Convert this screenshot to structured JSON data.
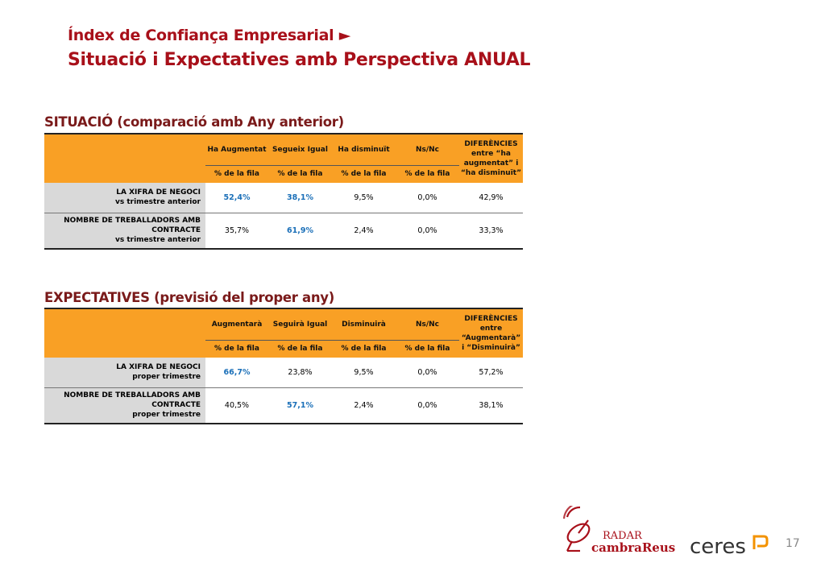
{
  "header": {
    "title": "Índex de Confiança Empresarial ►",
    "subtitle": "Situació i Expectatives amb Perspectiva ANUAL"
  },
  "situacio": {
    "title": "SITUACIÓ (comparació amb Any anterior)",
    "columns": [
      "Ha Augmentat",
      "Segueix Igual",
      "Ha disminuït",
      "Ns/Nc"
    ],
    "diff_header": [
      "DIFERÈNCIES",
      "entre “ha",
      "augmentat” i",
      "“ha disminuït”"
    ],
    "subheader": "% de la fila",
    "rows": [
      {
        "label": [
          "LA XIFRA DE NEGOCI",
          "vs trimestre anterior"
        ],
        "values": [
          "52,4%",
          "38,1%",
          "9,5%",
          "0,0%",
          "42,9%"
        ]
      },
      {
        "label": [
          "NOMBRE DE TREBALLADORS AMB",
          "CONTRACTE",
          "vs trimestre anterior"
        ],
        "values": [
          "35,7%",
          "61,9%",
          "2,4%",
          "0,0%",
          "33,3%"
        ]
      }
    ]
  },
  "expectatives": {
    "title": "EXPECTATIVES (previsió del proper any)",
    "columns": [
      "Augmentarà",
      "Seguirà Igual",
      "Disminuirà",
      "Ns/Nc"
    ],
    "diff_header": [
      "DIFERÈNCIES",
      "entre",
      "“Augmentarà”",
      "i “Disminuirà”"
    ],
    "subheader": "% de la fila",
    "rows": [
      {
        "label": [
          "LA XIFRA DE NEGOCI",
          "proper trimestre"
        ],
        "values": [
          "66,7%",
          "23,8%",
          "9,5%",
          "0,0%",
          "57,2%"
        ]
      },
      {
        "label": [
          "NOMBRE DE TREBALLADORS AMB",
          "CONTRACTE",
          "proper trimestre"
        ],
        "values": [
          "40,5%",
          "57,1%",
          "2,4%",
          "0,0%",
          "38,1%"
        ]
      }
    ]
  },
  "footer": {
    "radar_logo_text": "RADAR",
    "cambra_logo_text": "cambraReus",
    "ceres_logo_text": "ceres",
    "page_number": "17"
  },
  "colors": {
    "title": "#a8101a",
    "header_orange": "#f9a025",
    "label_grey": "#d9d9d9",
    "highlight_blue": "#1a6fb8"
  }
}
